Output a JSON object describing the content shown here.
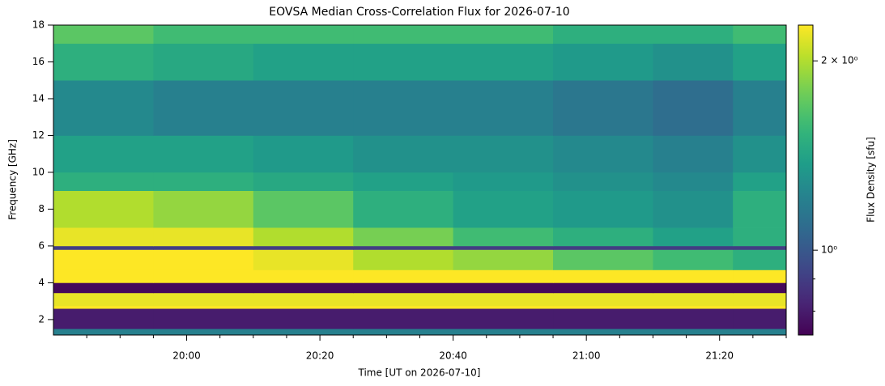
{
  "chart_data": {
    "type": "heatmap",
    "title": "EOVSA Median Cross-Correlation Flux for 2026-07-10",
    "xlabel": "Time [UT on 2026-07-10]",
    "ylabel": "Frequency [GHz]",
    "colorbar_label": "Flux Density [sfu]",
    "colormap": "viridis",
    "color_scale": "log",
    "xlim": [
      1180,
      1290
    ],
    "xticks": [
      {
        "value": 1200,
        "label": "20:00"
      },
      {
        "value": 1220,
        "label": "20:20"
      },
      {
        "value": 1240,
        "label": "20:40"
      },
      {
        "value": 1260,
        "label": "21:00"
      },
      {
        "value": 1280,
        "label": "21:20"
      }
    ],
    "xminorticks": [
      1185,
      1190,
      1195,
      1205,
      1210,
      1215,
      1225,
      1230,
      1235,
      1245,
      1250,
      1255,
      1265,
      1270,
      1275,
      1285,
      1290
    ],
    "ylim": [
      1.16,
      18
    ],
    "yticks": [
      2,
      4,
      6,
      8,
      10,
      12,
      14,
      16,
      18
    ],
    "clim": [
      0.733,
      2.28
    ],
    "cticks": [
      {
        "value": 2,
        "label": "2 × 10⁰"
      },
      {
        "value": 1,
        "label": "10⁰"
      }
    ],
    "cminorticks": [
      0.8,
      0.9
    ],
    "x_edges": [
      1180,
      1195,
      1210,
      1225,
      1240,
      1255,
      1270,
      1282,
      1290
    ],
    "y_edges": [
      1.16,
      1.5,
      2.6,
      2.75,
      3.45,
      3.65,
      4.0,
      4.7,
      5.8,
      6.0,
      7.0,
      9.0,
      10.0,
      12.0,
      15.0,
      17.0,
      18.0
    ],
    "z": [
      [
        1.2,
        1.2,
        1.2,
        1.2,
        1.2,
        1.2,
        1.2,
        1.2
      ],
      [
        0.8,
        0.8,
        0.8,
        0.8,
        0.8,
        0.8,
        0.8,
        0.8
      ],
      [
        2.28,
        2.28,
        2.28,
        2.28,
        2.28,
        2.28,
        2.28,
        2.28
      ],
      [
        2.2,
        2.2,
        2.2,
        2.2,
        2.2,
        2.2,
        2.2,
        2.2
      ],
      [
        0.75,
        0.75,
        0.75,
        0.75,
        0.75,
        0.75,
        0.75,
        0.75
      ],
      [
        0.75,
        0.75,
        0.75,
        0.75,
        0.75,
        0.75,
        0.75,
        0.75
      ],
      [
        2.28,
        2.28,
        2.28,
        2.28,
        2.28,
        2.28,
        2.28,
        2.28
      ],
      [
        2.3,
        2.3,
        2.2,
        2.0,
        1.9,
        1.7,
        1.6,
        1.5
      ],
      [
        0.9,
        0.9,
        0.9,
        0.9,
        0.9,
        0.9,
        0.9,
        0.9
      ],
      [
        2.2,
        2.2,
        2.0,
        1.8,
        1.6,
        1.5,
        1.4,
        1.5
      ],
      [
        2.0,
        1.9,
        1.7,
        1.5,
        1.4,
        1.35,
        1.3,
        1.5
      ],
      [
        1.5,
        1.5,
        1.45,
        1.4,
        1.35,
        1.3,
        1.25,
        1.4
      ],
      [
        1.4,
        1.4,
        1.35,
        1.3,
        1.3,
        1.25,
        1.2,
        1.3
      ],
      [
        1.25,
        1.2,
        1.2,
        1.2,
        1.2,
        1.15,
        1.1,
        1.2
      ],
      [
        1.5,
        1.45,
        1.4,
        1.4,
        1.4,
        1.35,
        1.3,
        1.4
      ],
      [
        1.7,
        1.6,
        1.6,
        1.6,
        1.6,
        1.5,
        1.5,
        1.6
      ]
    ]
  }
}
